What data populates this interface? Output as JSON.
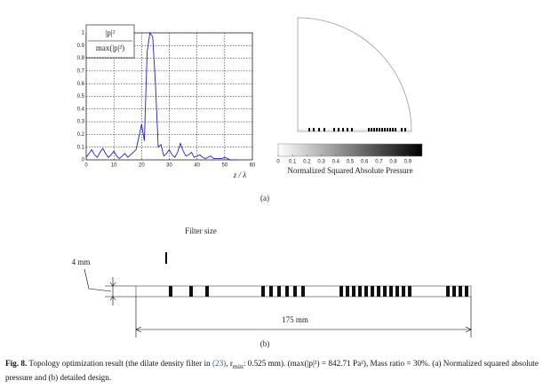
{
  "chart_data": [
    {
      "type": "line",
      "xlabel": "z / λ",
      "legend": {
        "numerator": "|p|²",
        "denominator": "max(|p|²)"
      },
      "x": [
        0,
        1,
        2,
        3,
        4,
        5,
        6,
        7,
        8,
        9,
        10,
        11,
        12,
        13,
        14,
        15,
        16,
        17,
        18,
        19,
        20,
        21,
        22,
        23,
        24,
        25,
        26,
        27,
        28,
        29,
        30,
        31,
        32,
        33,
        34,
        35,
        36,
        37,
        38,
        39,
        40,
        41,
        42,
        43,
        44,
        45,
        46,
        47,
        48,
        49,
        50,
        51,
        52,
        53,
        54,
        55
      ],
      "series": [
        {
          "color": "#1f1fd0",
          "values": [
            0.02,
            0.05,
            0.08,
            0.04,
            0.02,
            0.06,
            0.09,
            0.05,
            0.02,
            0.04,
            0.07,
            0.03,
            0.01,
            0.03,
            0.05,
            0.02,
            0.04,
            0.06,
            0.08,
            0.18,
            0.28,
            0.15,
            0.85,
            1.0,
            0.97,
            0.6,
            0.1,
            0.12,
            0.03,
            0.05,
            0.08,
            0.04,
            0.02,
            0.06,
            0.13,
            0.07,
            0.03,
            0.04,
            0.06,
            0.02,
            0.03,
            0.04,
            0.02,
            0.01,
            0.02,
            0.03,
            0.01,
            0.01,
            0.01,
            0.01,
            0.02,
            0.01,
            0,
            0,
            0,
            0
          ]
        }
      ],
      "xlim": [
        0,
        60
      ],
      "xticks": [
        0,
        10,
        20,
        30,
        40,
        50,
        60
      ],
      "ylim": [
        0,
        1
      ],
      "yticks": [
        0,
        0.1,
        0.2,
        0.3,
        0.4,
        0.5,
        0.6,
        0.7,
        0.8,
        0.9,
        1
      ],
      "grid": true
    },
    {
      "type": "colorbar",
      "title": "Normalized Squared Absolute Pressure",
      "colors": [
        "#ffffff",
        "#000000"
      ],
      "xlim": [
        0,
        1
      ],
      "xticks": [
        0,
        0.1,
        0.2,
        0.3,
        0.4,
        0.5,
        0.6,
        0.7,
        0.8,
        0.9
      ]
    }
  ],
  "labels": {
    "a": "(a)",
    "b": "(b)",
    "filter": "Filter size",
    "thickness": "4 mm",
    "length": "175 mm"
  },
  "caption": {
    "label": "Fig. 8.",
    "text_1": " Topology optimization result (the dilate density filter in ",
    "ref": "(23)",
    "text_2": ", r",
    "subscript": "min",
    "text_3": ": 0.525 mm). (max(|p|²) = 842.71 Pa²), Mass ratio = 30%. (a) Normalized squared absolute pressure and (b) detailed design."
  }
}
